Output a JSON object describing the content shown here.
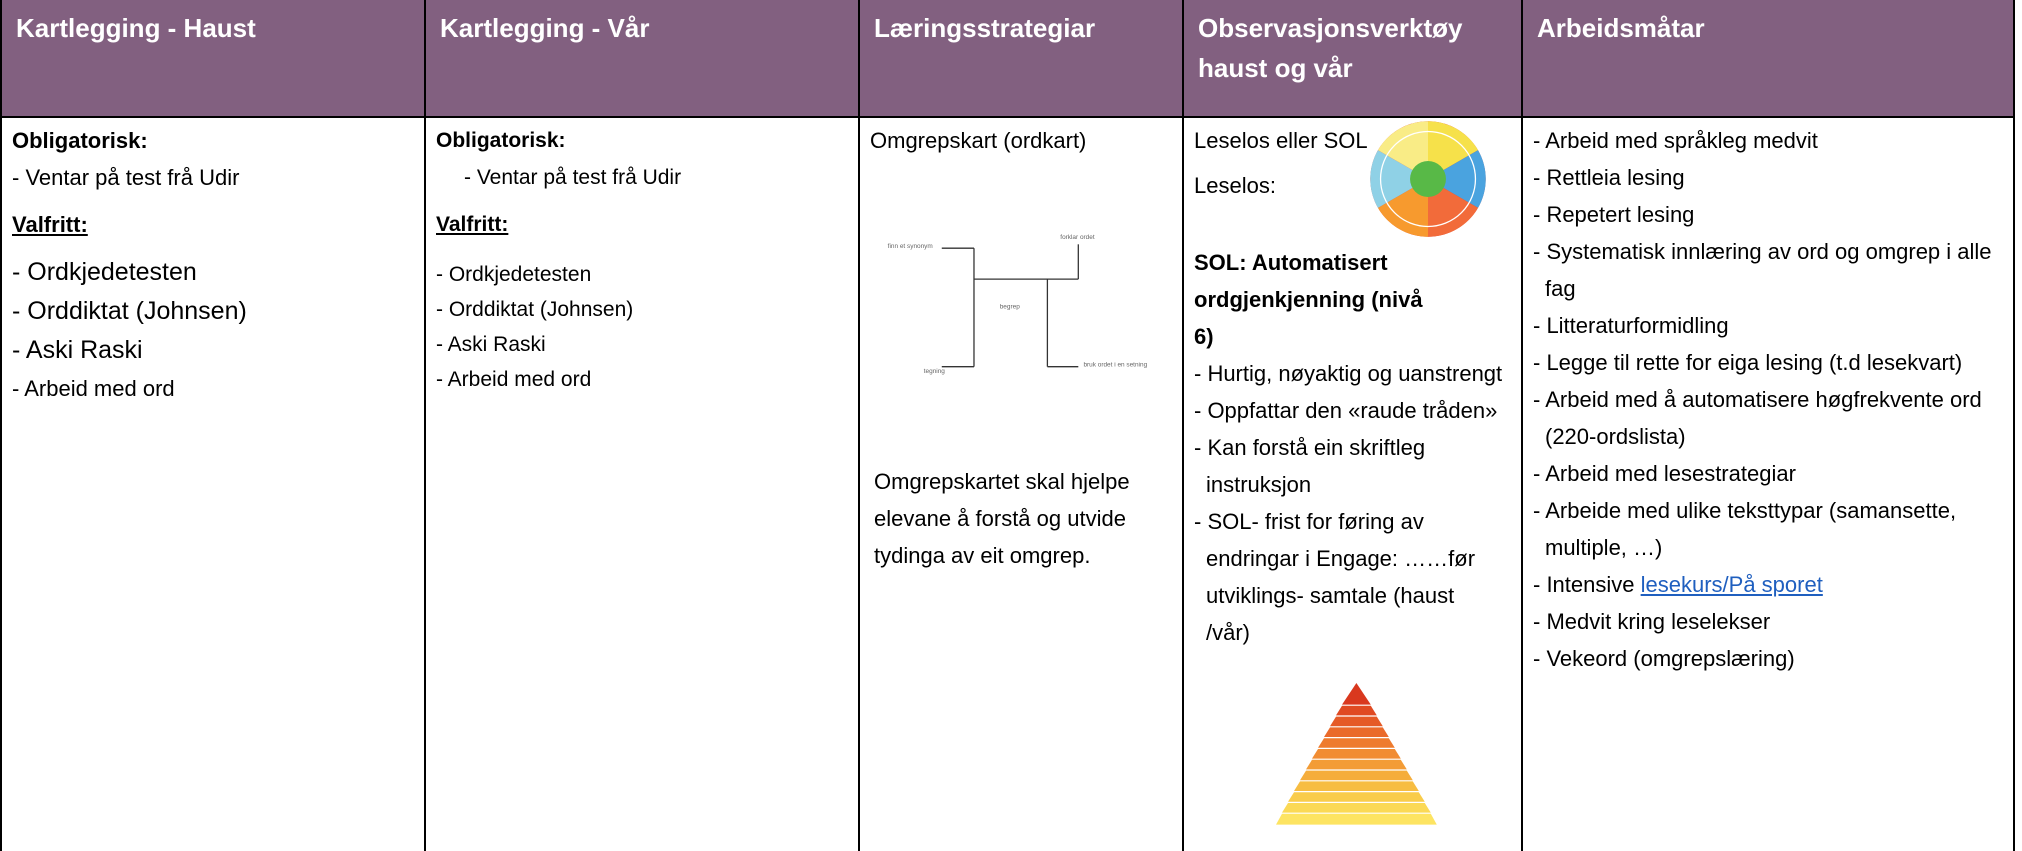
{
  "table": {
    "headers": [
      "Kartlegging - Haust",
      "Kartlegging - Vår",
      "Læringsstrategiar",
      "Observasjonsverktøy haust og vår",
      "Arbeidsmåtar"
    ],
    "col1": {
      "obligatorisk": "Obligatorisk:",
      "obligatorisk_item": "- Ventar på test frå Udir",
      "valfritt": "Valfritt:",
      "items": [
        "- Ordkjedetesten",
        "- Orddiktat (Johnsen)",
        "- Aski Raski",
        "- Arbeid med ord"
      ]
    },
    "col2": {
      "obligatorisk": "Obligatorisk:",
      "obligatorisk_item": "- Ventar på test frå Udir",
      "valfritt": "Valfritt:",
      "items": [
        "- Ordkjedetesten",
        "- Orddiktat (Johnsen)",
        "- Aski Raski",
        "- Arbeid med ord"
      ]
    },
    "col3": {
      "title": "Omgrepskart (ordkart)",
      "map_labels": [
        "finn et synonym",
        "forklar ordet",
        "begrep",
        "tegning",
        "bruk ordet i en setning"
      ],
      "description": "Omgrepskartet skal hjelpe elevane å forstå og utvide tydinga av eit omgrep."
    },
    "col4": {
      "lines": [
        "Leselos eller SOL",
        "Leselos:"
      ],
      "sol_title": "SOL: Automatisert ordgjenkjenning (nivå 6)",
      "items": [
        "- Hurtig, nøyaktig og uanstrengt",
        "- Oppfattar den «raude tråden»",
        "- Kan forstå ein skriftleg instruksjon",
        "- SOL- frist for føring av endringar i Engage: ……før utviklings- samtale (haust /vår)"
      ]
    },
    "col5": {
      "items": [
        "- Arbeid med språkleg medvit",
        "- Rettleia lesing",
        "- Repetert lesing",
        "- Systematisk innlæring av ord og omgrep i alle fag",
        "- Litteraturformidling",
        "- Legge til rette for eiga lesing (t.d lesekvart)",
        "- Arbeid med å automatisere høgfrekvente ord (220-ordslista)",
        "- Arbeid med lesestrategiar",
        "- Arbeide med ulike teksttypar (samansette, multiple, …)"
      ],
      "link_prefix": "- Intensive",
      "link": "lesekurs/På sporet",
      "items_after": [
        "- Medvit kring leselekser",
        "- Vekeord (omgrepslæring)"
      ]
    }
  }
}
